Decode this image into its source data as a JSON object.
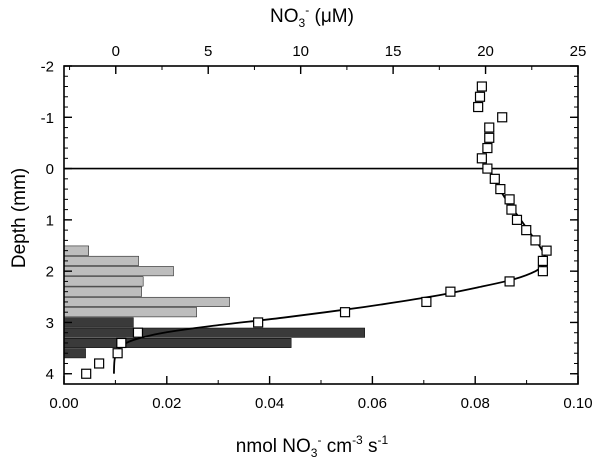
{
  "chart_data": {
    "type": "scatter",
    "top_axis": {
      "label_base": "NO",
      "label_sub": "3",
      "label_sup": "-",
      "label_tail": " (μM)",
      "ticks": [
        0,
        5,
        10,
        15,
        20,
        25
      ],
      "lim": [
        -2.8,
        25
      ]
    },
    "bottom_axis": {
      "label_parts": [
        "nmol NO",
        "3",
        "-",
        " cm",
        "-3",
        " s",
        "-1"
      ],
      "ticks": [
        "0.00",
        "0.02",
        "0.04",
        "0.06",
        "0.08",
        "0.10"
      ],
      "lim": [
        0,
        0.1
      ]
    },
    "y_axis": {
      "label": "Depth (mm)",
      "ticks": [
        -2,
        -1,
        0,
        1,
        2,
        3,
        4
      ],
      "lim": [
        -2,
        4.2
      ],
      "inverted": true
    },
    "surface_line_depth": 0,
    "concentration_points": [
      {
        "depth": -1.6,
        "conc": 19.8
      },
      {
        "depth": -1.4,
        "conc": 19.7
      },
      {
        "depth": -1.2,
        "conc": 19.6
      },
      {
        "depth": -1.0,
        "conc": 20.9
      },
      {
        "depth": -0.8,
        "conc": 20.2
      },
      {
        "depth": -0.6,
        "conc": 20.2
      },
      {
        "depth": -0.4,
        "conc": 20.1
      },
      {
        "depth": -0.2,
        "conc": 19.8
      },
      {
        "depth": 0.0,
        "conc": 20.1
      },
      {
        "depth": 0.2,
        "conc": 20.5
      },
      {
        "depth": 0.4,
        "conc": 20.8
      },
      {
        "depth": 0.6,
        "conc": 21.3
      },
      {
        "depth": 0.8,
        "conc": 21.4
      },
      {
        "depth": 1.0,
        "conc": 21.7
      },
      {
        "depth": 1.2,
        "conc": 22.2
      },
      {
        "depth": 1.4,
        "conc": 22.7
      },
      {
        "depth": 1.6,
        "conc": 23.3
      },
      {
        "depth": 1.8,
        "conc": 23.1
      },
      {
        "depth": 2.0,
        "conc": 23.1
      },
      {
        "depth": 2.2,
        "conc": 21.3
      },
      {
        "depth": 2.4,
        "conc": 18.1
      },
      {
        "depth": 2.6,
        "conc": 16.8
      },
      {
        "depth": 2.8,
        "conc": 12.4
      },
      {
        "depth": 3.0,
        "conc": 7.7
      },
      {
        "depth": 3.2,
        "conc": 1.2
      },
      {
        "depth": 3.4,
        "conc": 0.3
      },
      {
        "depth": 3.6,
        "conc": 0.1
      },
      {
        "depth": 3.8,
        "conc": -0.9
      },
      {
        "depth": 4.0,
        "conc": -1.6
      }
    ],
    "model_curve": [
      {
        "depth": 0.0,
        "conc": 20.2
      },
      {
        "depth": 0.3,
        "conc": 20.6
      },
      {
        "depth": 0.6,
        "conc": 21.1
      },
      {
        "depth": 0.9,
        "conc": 21.7
      },
      {
        "depth": 1.2,
        "conc": 22.3
      },
      {
        "depth": 1.5,
        "conc": 22.9
      },
      {
        "depth": 1.7,
        "conc": 23.2
      },
      {
        "depth": 1.85,
        "conc": 23.2
      },
      {
        "depth": 2.0,
        "conc": 22.7
      },
      {
        "depth": 2.15,
        "conc": 21.6
      },
      {
        "depth": 2.3,
        "conc": 19.8
      },
      {
        "depth": 2.5,
        "conc": 17.0
      },
      {
        "depth": 2.7,
        "conc": 13.4
      },
      {
        "depth": 2.9,
        "conc": 9.2
      },
      {
        "depth": 3.05,
        "conc": 5.6
      },
      {
        "depth": 3.2,
        "conc": 2.6
      },
      {
        "depth": 3.35,
        "conc": 0.9
      },
      {
        "depth": 3.5,
        "conc": 0.2
      },
      {
        "depth": 3.7,
        "conc": -0.05
      },
      {
        "depth": 4.0,
        "conc": -0.1
      }
    ],
    "rate_bars_production": [
      {
        "depth": 1.6,
        "rate": 0.0048
      },
      {
        "depth": 1.8,
        "rate": 0.0145
      },
      {
        "depth": 2.0,
        "rate": 0.0213
      },
      {
        "depth": 2.2,
        "rate": 0.0154
      },
      {
        "depth": 2.4,
        "rate": 0.0151
      },
      {
        "depth": 2.6,
        "rate": 0.0322
      },
      {
        "depth": 2.8,
        "rate": 0.0258
      }
    ],
    "rate_bars_consumption": [
      {
        "depth": 3.0,
        "rate": 0.0135
      },
      {
        "depth": 3.2,
        "rate": 0.0585
      },
      {
        "depth": 3.4,
        "rate": 0.0442
      },
      {
        "depth": 3.6,
        "rate": 0.0042
      }
    ],
    "colors": {
      "production_bar": "#bdbdbd",
      "consumption_bar": "#3a3a3a",
      "marker_fill": "#ffffff",
      "line": "#000000"
    }
  }
}
